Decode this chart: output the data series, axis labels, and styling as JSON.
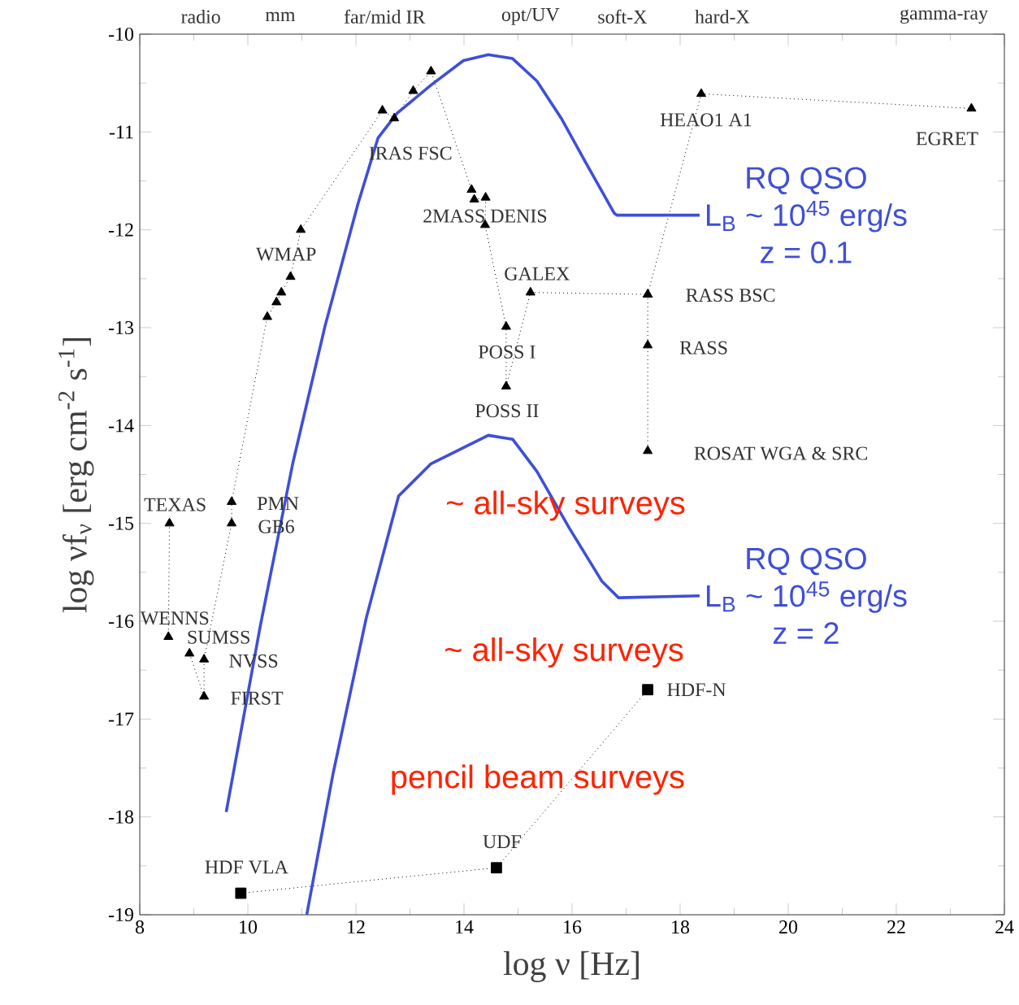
{
  "chart_data": {
    "type": "line",
    "xlabel": "log ν  [Hz]",
    "ylabel": "log νf$_{ν}$ [erg cm$^{-2}$ s$^{-1}$]",
    "xlim": [
      8,
      24
    ],
    "xticks": [
      8,
      10,
      12,
      14,
      16,
      18,
      20,
      22,
      24
    ],
    "ylim": [
      -19,
      -10
    ],
    "yticks": [
      -19,
      -18,
      -17,
      -16,
      -15,
      -14,
      -13,
      -12,
      -11,
      -10
    ],
    "series": [
      {
        "color": "#000000",
        "marker": "triangle",
        "line_style": "dotted",
        "x": [
          8.55,
          8.53
        ],
        "values": [
          -15.0,
          -16.16
        ]
      },
      {
        "color": "#000000",
        "marker": "triangle",
        "line_style": "dotted",
        "x": [
          8.92,
          9.19,
          9.19,
          9.7,
          9.7,
          10.36,
          10.53,
          10.62,
          10.79,
          10.98,
          12.49,
          12.71,
          13.06,
          13.39,
          14.14,
          14.19,
          14.4,
          14.39,
          14.78,
          14.78,
          15.23,
          17.4,
          18.39,
          23.39
        ],
        "values": [
          -16.33,
          -16.77,
          -16.39,
          -15.0,
          -14.78,
          -12.89,
          -12.74,
          -12.64,
          -12.48,
          -12.0,
          -10.78,
          -10.86,
          -10.58,
          -10.38,
          -11.59,
          -11.69,
          -11.67,
          -11.95,
          -12.99,
          -13.6,
          -12.64,
          -12.66,
          -10.61,
          -10.76
        ]
      },
      {
        "color": "#000000",
        "marker": "triangle",
        "line_style": "dotted",
        "x": [
          17.4,
          17.4,
          17.4
        ],
        "values": [
          -12.66,
          -13.18,
          -14.26
        ]
      },
      {
        "color": "#000000",
        "marker": "square",
        "line_style": "dotted",
        "x": [
          9.87,
          14.6,
          17.4
        ],
        "values": [
          -18.78,
          -18.52,
          -16.7
        ]
      },
      {
        "name": "RQ QSO L$_{B}$ ~ 10$^{45}$ erg/s z = 0.1",
        "color": "#3f4fd6",
        "marker": "none",
        "line_style": "solid",
        "x": [
          9.6,
          10.23,
          10.83,
          11.43,
          12.04,
          12.41,
          12.76,
          13.39,
          13.99,
          14.45,
          14.9,
          15.35,
          15.8,
          16.25,
          16.78,
          16.83,
          18.36
        ],
        "values": [
          -17.95,
          -16.05,
          -14.39,
          -12.98,
          -11.73,
          -11.06,
          -10.81,
          -10.52,
          -10.27,
          -10.21,
          -10.25,
          -10.48,
          -10.86,
          -11.31,
          -11.83,
          -11.85,
          -11.85
        ]
      },
      {
        "name": "RQ QSO L$_{B}$ ~ 10$^{45}$ erg/s z = 2",
        "color": "#3f4fd6",
        "marker": "none",
        "line_style": "solid",
        "x": [
          11.09,
          11.58,
          12.19,
          12.79,
          13.39,
          14.45,
          14.9,
          15.35,
          15.95,
          16.55,
          16.86,
          18.36
        ],
        "values": [
          -19.0,
          -17.55,
          -15.97,
          -14.72,
          -14.39,
          -14.1,
          -14.14,
          -14.47,
          -15.05,
          -15.59,
          -15.76,
          -15.74
        ]
      }
    ],
    "annotations": [
      {
        "text": "TEXAS",
        "x": 8.55,
        "y": -15.0
      },
      {
        "text": "PMN",
        "x": 9.7,
        "y": -14.78
      },
      {
        "text": "GB6",
        "x": 9.7,
        "y": -15.0
      },
      {
        "text": "WENNS",
        "x": 8.53,
        "y": -16.16
      },
      {
        "text": "SUMSS",
        "x": 8.92,
        "y": -16.33
      },
      {
        "text": "NVSS",
        "x": 9.19,
        "y": -16.39
      },
      {
        "text": "FIRST",
        "x": 9.19,
        "y": -16.77
      },
      {
        "text": "WMAP",
        "x": 10.98,
        "y": -12.0
      },
      {
        "text": "IRAS FSC",
        "x": 12.71,
        "y": -10.86
      },
      {
        "text": "2MASS DENIS",
        "x": 14.39,
        "y": -11.95
      },
      {
        "text": "GALEX",
        "x": 15.23,
        "y": -12.64
      },
      {
        "text": "POSS I",
        "x": 14.78,
        "y": -12.99
      },
      {
        "text": "POSS II",
        "x": 14.78,
        "y": -13.6
      },
      {
        "text": "RASS BSC",
        "x": 17.4,
        "y": -12.66
      },
      {
        "text": "RASS",
        "x": 17.4,
        "y": -13.18
      },
      {
        "text": "ROSAT WGA & SRC",
        "x": 17.4,
        "y": -14.26
      },
      {
        "text": "HEAO1 A1",
        "x": 18.39,
        "y": -10.61
      },
      {
        "text": "EGRET",
        "x": 23.39,
        "y": -10.76
      },
      {
        "text": "HDF-N",
        "x": 17.4,
        "y": -16.7
      },
      {
        "text": "UDF",
        "x": 14.6,
        "y": -18.52
      },
      {
        "text": "HDF VLA",
        "x": 9.87,
        "y": -18.78
      },
      "radio",
      "mm",
      "far/mid IR",
      "opt/UV",
      "soft-X",
      "hard-X",
      "gamma-ray",
      "~ all-sky surveys",
      "~ all-sky surveys",
      "pencil beam surveys"
    ]
  }
}
